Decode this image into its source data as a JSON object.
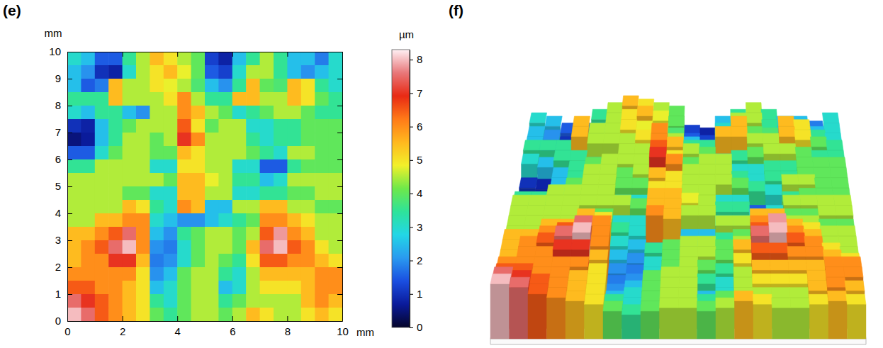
{
  "chart_data": [
    {
      "type": "heatmap",
      "title": "(e)",
      "xlabel": "mm",
      "ylabel": "mm",
      "zlabel": "µm",
      "xlim": [
        0,
        10
      ],
      "ylim": [
        0,
        10
      ],
      "xticks": [
        0,
        2,
        4,
        6,
        8,
        10
      ],
      "yticks": [
        0,
        1,
        2,
        3,
        4,
        5,
        6,
        7,
        8,
        9,
        10
      ],
      "zlim": [
        0,
        8.3
      ],
      "zticks": [
        0,
        1,
        2,
        3,
        4,
        5,
        6,
        7,
        8
      ],
      "x": [
        0.25,
        0.75,
        1.25,
        1.75,
        2.25,
        2.75,
        3.25,
        3.75,
        4.25,
        4.75,
        5.25,
        5.75,
        6.25,
        6.75,
        7.25,
        7.75,
        8.25,
        8.75,
        9.25,
        9.75
      ],
      "y": [
        9.75,
        9.25,
        8.75,
        8.25,
        7.75,
        7.25,
        6.75,
        6.25,
        5.75,
        5.25,
        4.75,
        4.25,
        3.75,
        3.25,
        2.75,
        2.25,
        1.75,
        1.25,
        0.75,
        0.25
      ],
      "z": [
        [
          3,
          2.5,
          1.5,
          1.5,
          3.5,
          4.5,
          5.5,
          5,
          4.5,
          4,
          1.2,
          0.8,
          2.5,
          3.5,
          4.5,
          3.5,
          2.5,
          2.5,
          1.8,
          3
        ],
        [
          2.5,
          2,
          1,
          0.8,
          3,
          4.5,
          5,
          5.5,
          4.8,
          4,
          1.5,
          1.2,
          3,
          4.5,
          4.5,
          3.5,
          2.5,
          2,
          2.5,
          3
        ],
        [
          2.5,
          1.5,
          1.8,
          5.5,
          4.5,
          4.5,
          5,
          4.8,
          4.5,
          3.8,
          2.5,
          2,
          3.5,
          5.5,
          4,
          3.8,
          5.5,
          5,
          3.5,
          3
        ],
        [
          3.5,
          3.5,
          3.5,
          5.5,
          4.5,
          4.5,
          4.5,
          5,
          6,
          4.5,
          3.5,
          3.5,
          5.5,
          5.5,
          4.5,
          4.5,
          5.5,
          5,
          4,
          3.5
        ],
        [
          3,
          2.5,
          3.5,
          3.5,
          2.5,
          2,
          4.5,
          4.5,
          6,
          5.5,
          4.5,
          4,
          3,
          3.5,
          4,
          4.5,
          4.5,
          4,
          3.5,
          3.5
        ],
        [
          1,
          0.8,
          2.5,
          3.5,
          4,
          4.5,
          4.5,
          4.5,
          6.5,
          5,
          4,
          4.5,
          4.5,
          3,
          3,
          3.5,
          3.5,
          4,
          4,
          4
        ],
        [
          0.5,
          0.7,
          2.5,
          3.5,
          4.5,
          4.5,
          4,
          4.5,
          7,
          6,
          4.5,
          4.5,
          4.5,
          3.5,
          3,
          3.5,
          3.5,
          4,
          4,
          4
        ],
        [
          1.5,
          1.5,
          3,
          4,
          4.5,
          4.5,
          4,
          4,
          5.5,
          5,
          4.5,
          4.5,
          4.5,
          4,
          3.5,
          3,
          4.5,
          4.5,
          4,
          4
        ],
        [
          3.5,
          3.5,
          4.5,
          4.5,
          4.5,
          4.5,
          3,
          3,
          5,
          5,
          4.5,
          4.5,
          3,
          3,
          1.5,
          1.5,
          3.5,
          4,
          4,
          4
        ],
        [
          4.5,
          4.5,
          4.5,
          4.5,
          4.5,
          4.5,
          4.5,
          4,
          5.5,
          5.5,
          4.8,
          4.5,
          3.5,
          3.5,
          2.5,
          3,
          4.5,
          4.5,
          4.5,
          4.5
        ],
        [
          4.5,
          4.5,
          4.5,
          4.5,
          4,
          4,
          3,
          3,
          5.5,
          5.5,
          4.5,
          4.5,
          3,
          3,
          3.5,
          3.5,
          4,
          4,
          4.5,
          4.5
        ],
        [
          4.5,
          4.5,
          4.5,
          4.5,
          5.5,
          5,
          3.5,
          3,
          6,
          5.5,
          2.5,
          2.5,
          4.5,
          4.5,
          5.5,
          5.5,
          4.5,
          4.5,
          4,
          4
        ],
        [
          4.5,
          4.5,
          5.5,
          5.5,
          6,
          6,
          3,
          2.5,
          2,
          2,
          2.5,
          3,
          3.5,
          4,
          6,
          6,
          5.5,
          5,
          4.5,
          4.5
        ],
        [
          5.5,
          5.5,
          6,
          6.5,
          7.5,
          6,
          2.5,
          2,
          3.5,
          4,
          4.5,
          4.5,
          4,
          4.5,
          6.5,
          7.8,
          6,
          5.5,
          4.5,
          4.5
        ],
        [
          5.5,
          6,
          6.5,
          7.5,
          8,
          6,
          2,
          1.8,
          3,
          4,
          4.5,
          4.5,
          4,
          5.5,
          7.5,
          8,
          6.5,
          6,
          5,
          4.5
        ],
        [
          5.5,
          6,
          6,
          7,
          7,
          5.5,
          1.8,
          2,
          3,
          4,
          4.5,
          4,
          3.5,
          5,
          6.5,
          6.5,
          6,
          6,
          5.5,
          5
        ],
        [
          6,
          6,
          6,
          6,
          6,
          5,
          2,
          2.5,
          4,
          4.5,
          4.5,
          3.5,
          3,
          4.5,
          5.5,
          5.5,
          5.5,
          5.5,
          6,
          6
        ],
        [
          6.5,
          6.5,
          6,
          6,
          5.5,
          5,
          2.5,
          3,
          4,
          4.5,
          4.5,
          2.5,
          3,
          4.5,
          5,
          5,
          5,
          5.5,
          6,
          6
        ],
        [
          7.5,
          7,
          6.5,
          6,
          5.5,
          5,
          3.5,
          3,
          4,
          4.5,
          4.5,
          3.5,
          4,
          4.5,
          4.5,
          4.5,
          4.5,
          5.5,
          6,
          5.5
        ],
        [
          8,
          7.5,
          6.5,
          6,
          5.5,
          5,
          4,
          3.5,
          4,
          4.5,
          4.5,
          4,
          4.5,
          5.5,
          5,
          4.5,
          4.5,
          5,
          5.5,
          5
        ]
      ]
    },
    {
      "type": "surface",
      "title": "(f)",
      "xlim": [
        0,
        10
      ],
      "ylim": [
        0,
        10
      ],
      "zlim": [
        0,
        8.3
      ],
      "x": [
        0.25,
        0.75,
        1.25,
        1.75,
        2.25,
        2.75,
        3.25,
        3.75,
        4.25,
        4.75,
        5.25,
        5.75,
        6.25,
        6.75,
        7.25,
        7.75,
        8.25,
        8.75,
        9.25,
        9.75
      ],
      "y": [
        9.75,
        9.25,
        8.75,
        8.25,
        7.75,
        7.25,
        6.75,
        6.25,
        5.75,
        5.25,
        4.75,
        4.25,
        3.75,
        3.25,
        2.75,
        2.25,
        1.75,
        1.25,
        0.75,
        0.25
      ],
      "z": [
        [
          3,
          2.5,
          1.5,
          1.5,
          3.5,
          4.5,
          5.5,
          5,
          4.5,
          4,
          1.2,
          0.8,
          2.5,
          3.5,
          4.5,
          3.5,
          2.5,
          2.5,
          1.8,
          3
        ],
        [
          2.5,
          2,
          1,
          0.8,
          3,
          4.5,
          5,
          5.5,
          4.8,
          4,
          1.5,
          1.2,
          3,
          4.5,
          4.5,
          3.5,
          2.5,
          2,
          2.5,
          3
        ],
        [
          2.5,
          1.5,
          1.8,
          5.5,
          4.5,
          4.5,
          5,
          4.8,
          4.5,
          3.8,
          2.5,
          2,
          3.5,
          5.5,
          4,
          3.8,
          5.5,
          5,
          3.5,
          3
        ],
        [
          3.5,
          3.5,
          3.5,
          5.5,
          4.5,
          4.5,
          4.5,
          5,
          6,
          4.5,
          3.5,
          3.5,
          5.5,
          5.5,
          4.5,
          4.5,
          5.5,
          5,
          4,
          3.5
        ],
        [
          3,
          2.5,
          3.5,
          3.5,
          2.5,
          2,
          4.5,
          4.5,
          6,
          5.5,
          4.5,
          4,
          3,
          3.5,
          4,
          4.5,
          4.5,
          4,
          3.5,
          3.5
        ],
        [
          1,
          0.8,
          2.5,
          3.5,
          4,
          4.5,
          4.5,
          4.5,
          6.5,
          5,
          4,
          4.5,
          4.5,
          3,
          3,
          3.5,
          3.5,
          4,
          4,
          4
        ],
        [
          0.5,
          0.7,
          2.5,
          3.5,
          4.5,
          4.5,
          4,
          4.5,
          7,
          6,
          4.5,
          4.5,
          4.5,
          3.5,
          3,
          3.5,
          3.5,
          4,
          4,
          4
        ],
        [
          1.5,
          1.5,
          3,
          4,
          4.5,
          4.5,
          4,
          4,
          5.5,
          5,
          4.5,
          4.5,
          4.5,
          4,
          3.5,
          3,
          4.5,
          4.5,
          4,
          4
        ],
        [
          3.5,
          3.5,
          4.5,
          4.5,
          4.5,
          4.5,
          3,
          3,
          5,
          5,
          4.5,
          4.5,
          3,
          3,
          1.5,
          1.5,
          3.5,
          4,
          4,
          4
        ],
        [
          4.5,
          4.5,
          4.5,
          4.5,
          4.5,
          4.5,
          4.5,
          4,
          5.5,
          5.5,
          4.8,
          4.5,
          3.5,
          3.5,
          2.5,
          3,
          4.5,
          4.5,
          4.5,
          4.5
        ],
        [
          4.5,
          4.5,
          4.5,
          4.5,
          4,
          4,
          3,
          3,
          5.5,
          5.5,
          4.5,
          4.5,
          3,
          3,
          3.5,
          3.5,
          4,
          4,
          4.5,
          4.5
        ],
        [
          4.5,
          4.5,
          4.5,
          4.5,
          5.5,
          5,
          3.5,
          3,
          6,
          5.5,
          2.5,
          2.5,
          4.5,
          4.5,
          5.5,
          5.5,
          4.5,
          4.5,
          4,
          4
        ],
        [
          4.5,
          4.5,
          5.5,
          5.5,
          6,
          6,
          3,
          2.5,
          2,
          2,
          2.5,
          3,
          3.5,
          4,
          6,
          6,
          5.5,
          5,
          4.5,
          4.5
        ],
        [
          5.5,
          5.5,
          6,
          6.5,
          7.5,
          6,
          2.5,
          2,
          3.5,
          4,
          4.5,
          4.5,
          4,
          4.5,
          6.5,
          7.8,
          6,
          5.5,
          4.5,
          4.5
        ],
        [
          5.5,
          6,
          6.5,
          7.5,
          8,
          6,
          2,
          1.8,
          3,
          4,
          4.5,
          4.5,
          4,
          5.5,
          7.5,
          8,
          6.5,
          6,
          5,
          4.5
        ],
        [
          5.5,
          6,
          6,
          7,
          7,
          5.5,
          1.8,
          2,
          3,
          4,
          4.5,
          4,
          3.5,
          5,
          6.5,
          6.5,
          6,
          6,
          5.5,
          5
        ],
        [
          6,
          6,
          6,
          6,
          6,
          5,
          2,
          2.5,
          4,
          4.5,
          4.5,
          3.5,
          3,
          4.5,
          5.5,
          5.5,
          5.5,
          5.5,
          6,
          6
        ],
        [
          6.5,
          6.5,
          6,
          6,
          5.5,
          5,
          2.5,
          3,
          4,
          4.5,
          4.5,
          2.5,
          3,
          4.5,
          5,
          5,
          5,
          5.5,
          6,
          6
        ],
        [
          7.5,
          7,
          6.5,
          6,
          5.5,
          5,
          3.5,
          3,
          4,
          4.5,
          4.5,
          3.5,
          4,
          4.5,
          4.5,
          4.5,
          4.5,
          5.5,
          6,
          5.5
        ],
        [
          8,
          7.5,
          6.5,
          6,
          5.5,
          5,
          4,
          3.5,
          4,
          4.5,
          4.5,
          4,
          4.5,
          5.5,
          5,
          4.5,
          4.5,
          5,
          5.5,
          5
        ]
      ]
    }
  ]
}
